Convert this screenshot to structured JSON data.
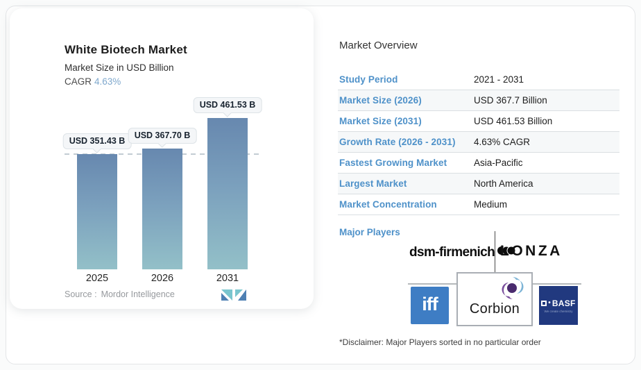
{
  "chart_card": {
    "title": "White Biotech Market",
    "subtitle": "Market Size in USD Billion",
    "cagr_label": "CAGR",
    "cagr_value": "4.63%",
    "bars": [
      {
        "year": "2025",
        "label": "USD 351.43 B"
      },
      {
        "year": "2026",
        "label": "USD 367.70 B"
      },
      {
        "year": "2031",
        "label": "USD 461.53 B"
      }
    ],
    "source_label": "Source :",
    "source_value": "Mordor Intelligence"
  },
  "chart_data": {
    "type": "bar",
    "title": "White Biotech Market",
    "subtitle": "Market Size in USD Billion",
    "cagr": "4.63%",
    "categories": [
      "2025",
      "2026",
      "2031"
    ],
    "values": [
      351.43,
      367.7,
      461.53
    ],
    "bar_labels": [
      "USD 351.43 B",
      "USD 367.70 B",
      "USD 461.53 B"
    ],
    "unit": "USD Billion",
    "ylim": [
      0,
      461.53
    ],
    "grid": false,
    "annotations": [
      "horizontal dashed reference line at 2025 value (351.43)"
    ]
  },
  "overview": {
    "title": "Market Overview",
    "rows": [
      {
        "label": "Study Period",
        "value": "2021 - 2031"
      },
      {
        "label": "Market Size (2026)",
        "value": "USD 367.7 Billion"
      },
      {
        "label": "Market Size (2031)",
        "value": "USD 461.53 Billion"
      },
      {
        "label": "Growth Rate (2026 - 2031)",
        "value": "4.63% CAGR"
      },
      {
        "label": "Fastest Growing Market",
        "value": "Asia-Pacific"
      },
      {
        "label": "Largest Market",
        "value": "North America"
      },
      {
        "label": "Market Concentration",
        "value": "Medium"
      }
    ],
    "major_players_label": "Major Players",
    "players": {
      "dsm": "dsm-firmenich",
      "lonza": "Lonza",
      "iff": "iff",
      "corbion": "Corbion",
      "basf": "BASF",
      "basf_tagline": "We create chemistry"
    },
    "disclaimer": "*Disclaimer: Major Players sorted in no particular order"
  },
  "colors": {
    "accent_blue": "#4e91c9",
    "cagr_blue": "#7fa8cd",
    "bar_gradient_top": "#6788af",
    "bar_gradient_bottom": "#93c0c8",
    "iff_blue": "#3e7dc4",
    "basf_navy": "#21397f",
    "logo_teal": "#79c5ce",
    "logo_navy": "#4e80b3"
  }
}
